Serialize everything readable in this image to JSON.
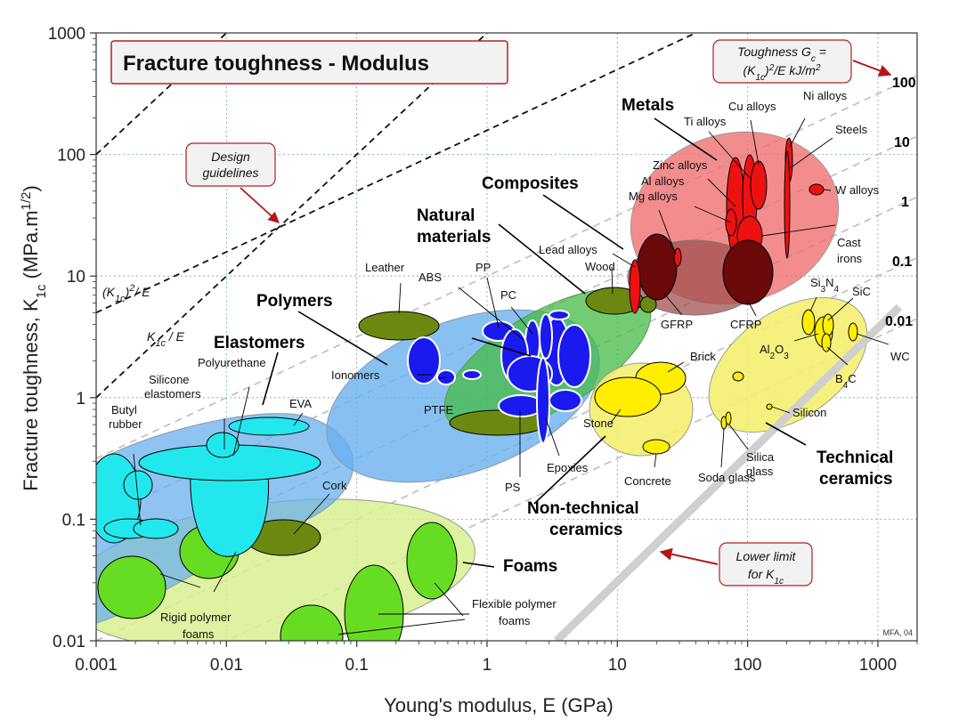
{
  "chart_data": {
    "type": "scatter",
    "title": "Fracture toughness - Modulus",
    "xlabel": "Young's modulus, E (GPa)",
    "ylabel": "Fracture toughness, K1c (MPa.m1/2)",
    "xscale": "log",
    "yscale": "log",
    "xlim": [
      0.001,
      2000
    ],
    "ylim": [
      0.01,
      1000
    ],
    "grid": true,
    "x_ticks": [
      "0.001",
      "0.01",
      "0.1",
      "1",
      "10",
      "100",
      "1000"
    ],
    "y_ticks": [
      "0.01",
      "0.1",
      "1",
      "10",
      "100",
      "1000"
    ],
    "toughness_contours": [
      "100",
      "10",
      "1",
      "0.1",
      "0.01"
    ],
    "toughness_note": "Toughness Gc = (K1c)2/E kJ/m2",
    "design_guidelines": "Design guidelines",
    "guideline_labels": [
      "(K1c)2/E",
      "K1c/E"
    ],
    "lower_limit_note": "Lower limit for K1c",
    "credit": "MFA, 04",
    "families": [
      {
        "name": "Metals",
        "color": "#f07070"
      },
      {
        "name": "Composites",
        "color": "#a05050"
      },
      {
        "name": "Natural materials",
        "color": "#44bb44"
      },
      {
        "name": "Polymers",
        "color": "#6ab0ee"
      },
      {
        "name": "Elastomers",
        "color": "#6ab0ee"
      },
      {
        "name": "Foams",
        "color": "#d8f090"
      },
      {
        "name": "Non-technical ceramics",
        "color": "#f5f070"
      },
      {
        "name": "Technical ceramics",
        "color": "#f5f070"
      }
    ],
    "materials": [
      {
        "name": "Steels",
        "E": 210,
        "K1c": 80
      },
      {
        "name": "Ni alloys",
        "E": 200,
        "K1c": 110
      },
      {
        "name": "Cu alloys",
        "E": 120,
        "K1c": 60
      },
      {
        "name": "Ti alloys",
        "E": 110,
        "K1c": 60
      },
      {
        "name": "Zinc alloys",
        "E": 90,
        "K1c": 40
      },
      {
        "name": "Al alloys",
        "E": 70,
        "K1c": 30
      },
      {
        "name": "Mg alloys",
        "E": 45,
        "K1c": 15
      },
      {
        "name": "W alloys",
        "E": 370,
        "K1c": 50
      },
      {
        "name": "Cast irons",
        "E": 160,
        "K1c": 20
      },
      {
        "name": "Lead alloys",
        "E": 15,
        "K1c": 10
      },
      {
        "name": "CFRP",
        "E": 100,
        "K1c": 8
      },
      {
        "name": "GFRP",
        "E": 25,
        "K1c": 10
      },
      {
        "name": "Wood",
        "E": 10,
        "K1c": 7
      },
      {
        "name": "Leather",
        "E": 0.3,
        "K1c": 4
      },
      {
        "name": "Ionomers",
        "E": 0.25,
        "K1c": 2
      },
      {
        "name": "PTFE",
        "E": 0.5,
        "K1c": 1.5
      },
      {
        "name": "ABS",
        "E": 2,
        "K1c": 3
      },
      {
        "name": "PP",
        "E": 1.4,
        "K1c": 3.5
      },
      {
        "name": "PC",
        "E": 2.3,
        "K1c": 3
      },
      {
        "name": "PS",
        "E": 2.5,
        "K1c": 1
      },
      {
        "name": "Epoxies",
        "E": 3,
        "K1c": 0.8
      },
      {
        "name": "Polyurethane",
        "E": 0.01,
        "K1c": 0.35
      },
      {
        "name": "EVA",
        "E": 0.03,
        "K1c": 0.6
      },
      {
        "name": "Silicone elastomers",
        "E": 0.005,
        "K1c": 0.3
      },
      {
        "name": "Butyl rubber",
        "E": 0.0015,
        "K1c": 0.15
      },
      {
        "name": "Cork",
        "E": 0.03,
        "K1c": 0.08
      },
      {
        "name": "Rigid polymer foams",
        "E": 0.005,
        "K1c": 0.04
      },
      {
        "name": "Flexible polymer foams",
        "E": 0.1,
        "K1c": 0.02
      },
      {
        "name": "Brick",
        "E": 25,
        "K1c": 1.5
      },
      {
        "name": "Stone",
        "E": 15,
        "K1c": 1
      },
      {
        "name": "Concrete",
        "E": 25,
        "K1c": 0.4
      },
      {
        "name": "Si3N4",
        "E": 300,
        "K1c": 5
      },
      {
        "name": "SiC",
        "E": 420,
        "K1c": 4
      },
      {
        "name": "Al2O3",
        "E": 380,
        "K1c": 4
      },
      {
        "name": "B4C",
        "E": 450,
        "K1c": 3
      },
      {
        "name": "WC",
        "E": 650,
        "K1c": 4
      },
      {
        "name": "Silicon",
        "E": 160,
        "K1c": 0.9
      },
      {
        "name": "Silica glass",
        "E": 70,
        "K1c": 0.8
      },
      {
        "name": "Soda glass",
        "E": 70,
        "K1c": 0.7
      }
    ]
  }
}
